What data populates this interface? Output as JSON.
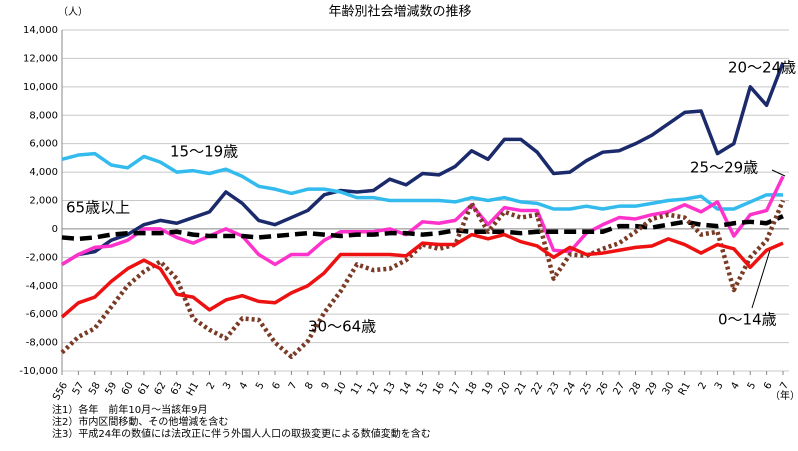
{
  "chart_data": {
    "type": "line",
    "title": "年齢別社会増減数の推移",
    "y_unit": "（人）",
    "x_unit": "（年）",
    "categories": [
      "S56",
      "57",
      "58",
      "59",
      "60",
      "61",
      "62",
      "63",
      "H1",
      "2",
      "3",
      "4",
      "5",
      "6",
      "7",
      "8",
      "9",
      "10",
      "11",
      "12",
      "13",
      "14",
      "15",
      "16",
      "17",
      "18",
      "19",
      "20",
      "21",
      "22",
      "23",
      "24",
      "25",
      "26",
      "27",
      "28",
      "29",
      "30",
      "R1",
      "2",
      "3",
      "4",
      "5",
      "6",
      "7"
    ],
    "ylim": [
      -10000,
      14000
    ],
    "yticks": [
      {
        "value": -10000,
        "label": "-10,000"
      },
      {
        "value": -8000,
        "label": "-8,000"
      },
      {
        "value": -6000,
        "label": "-6,000"
      },
      {
        "value": -4000,
        "label": "-4,000"
      },
      {
        "value": -2000,
        "label": "-2,000"
      },
      0,
      {
        "value": 2000,
        "label": "2,000"
      },
      {
        "value": 4000,
        "label": "4,000"
      },
      {
        "value": 6000,
        "label": "6,000"
      },
      {
        "value": 8000,
        "label": "8,000"
      },
      {
        "value": 10000,
        "label": "10,000"
      },
      {
        "value": 12000,
        "label": "12,000"
      },
      {
        "value": 14000,
        "label": "14,000"
      }
    ],
    "grid": true,
    "series": [
      {
        "name": "20～24歳",
        "color": "#1b2a6b",
        "style": "solid",
        "values": [
          -2500,
          -1800,
          -1600,
          -800,
          -400,
          300,
          600,
          400,
          800,
          1200,
          2600,
          1800,
          600,
          300,
          800,
          1300,
          2400,
          2700,
          2600,
          2700,
          3500,
          3100,
          3900,
          3800,
          4400,
          5500,
          4900,
          6300,
          6300,
          5400,
          3900,
          4000,
          4800,
          5400,
          5500,
          6000,
          6600,
          7400,
          8200,
          8300,
          5300,
          6000,
          10000,
          8700,
          11700
        ]
      },
      {
        "name": "15～19歳",
        "color": "#33bbee",
        "style": "solid",
        "values": [
          4900,
          5200,
          5300,
          4500,
          4300,
          5100,
          4700,
          4000,
          4100,
          3900,
          4200,
          3700,
          3000,
          2800,
          2500,
          2800,
          2800,
          2600,
          2200,
          2200,
          2000,
          2000,
          2000,
          2000,
          1900,
          2200,
          2000,
          2200,
          1900,
          1800,
          1400,
          1400,
          1600,
          1400,
          1600,
          1600,
          1800,
          2000,
          2100,
          2300,
          1400,
          1400,
          1900,
          2400,
          2400
        ]
      },
      {
        "name": "25～29歳",
        "color": "#ff33cc",
        "style": "solid",
        "values": [
          -2500,
          -1800,
          -1300,
          -1200,
          -800,
          0,
          0,
          -600,
          -1000,
          -500,
          0,
          -500,
          -1800,
          -2500,
          -1800,
          -1800,
          -800,
          -200,
          -200,
          -200,
          0,
          -400,
          500,
          400,
          600,
          1700,
          300,
          1500,
          1300,
          1300,
          -1500,
          -1600,
          -300,
          300,
          800,
          700,
          1000,
          1200,
          1700,
          1200,
          1900,
          -500,
          1000,
          1300,
          3700
        ]
      },
      {
        "name": "65歳以上",
        "color": "#000000",
        "style": "dashed",
        "values": [
          -600,
          -700,
          -600,
          -400,
          -300,
          -300,
          -300,
          -200,
          -400,
          -500,
          -500,
          -500,
          -600,
          -500,
          -400,
          -300,
          -400,
          -500,
          -400,
          -400,
          -300,
          -300,
          -400,
          -300,
          -100,
          -200,
          -200,
          -200,
          -300,
          -200,
          -200,
          -200,
          -200,
          -200,
          200,
          200,
          100,
          300,
          500,
          300,
          200,
          400,
          500,
          400,
          900
        ]
      },
      {
        "name": "30～64歳",
        "color": "#7a3b26",
        "style": "dotted",
        "values": [
          -8700,
          -7600,
          -7000,
          -5500,
          -4000,
          -3000,
          -2300,
          -3500,
          -6300,
          -7100,
          -7700,
          -6300,
          -6400,
          -8000,
          -9000,
          -7900,
          -5900,
          -4400,
          -2500,
          -2900,
          -2800,
          -2200,
          -1100,
          -1400,
          -1100,
          1800,
          -200,
          1200,
          800,
          1000,
          -3500,
          -1800,
          -1900,
          -1400,
          -1000,
          -200,
          700,
          1000,
          800,
          -400,
          -200,
          -4300,
          -2000,
          -800,
          2000
        ]
      },
      {
        "name": "0～14歳",
        "color": "#ee1111",
        "style": "solid",
        "values": [
          -6200,
          -5200,
          -4800,
          -3700,
          -2800,
          -2200,
          -2800,
          -4600,
          -4800,
          -5700,
          -5000,
          -4700,
          -5100,
          -5200,
          -4500,
          -4000,
          -3100,
          -1800,
          -1800,
          -1800,
          -1800,
          -1900,
          -1000,
          -1100,
          -1100,
          -400,
          -700,
          -400,
          -900,
          -1200,
          -2000,
          -1300,
          -1800,
          -1700,
          -1500,
          -1300,
          -1200,
          -700,
          -1100,
          -1700,
          -1100,
          -1400,
          -2700,
          -1500,
          -1000
        ]
      }
    ],
    "notes": [
      "注1）各年　前年10月～当該年9月",
      "注2）市内区間移動、その他増減を含む",
      "注3）平成24年の数値には法改正に伴う外国人人口の取扱変更による数値変動を含む"
    ]
  }
}
